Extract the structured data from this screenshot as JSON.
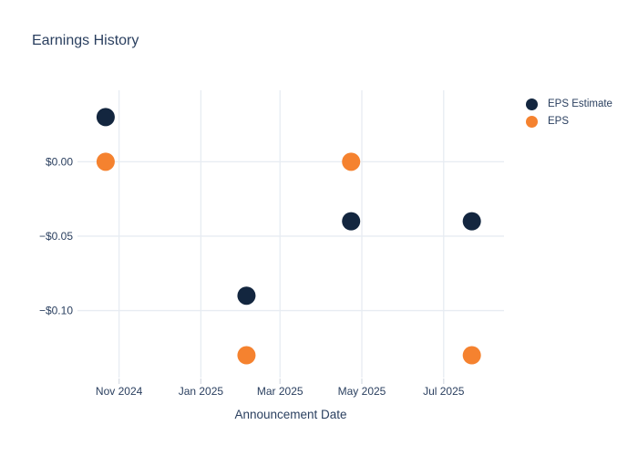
{
  "title": "Earnings History",
  "axis": {
    "x_title": "Announcement Date"
  },
  "legend": {
    "items": [
      {
        "label": "EPS Estimate",
        "color": "#13263f"
      },
      {
        "label": "EPS",
        "color": "#f5822f"
      }
    ]
  },
  "colors": {
    "estimate": "#13263f",
    "actual": "#f5822f",
    "text": "#2a3f5f",
    "grid": "#e7ecf2",
    "tick": "#d9dee6",
    "background": "#ffffff"
  },
  "chart_data": {
    "type": "scatter",
    "title": "Earnings History",
    "xlabel": "Announcement Date",
    "ylabel": "",
    "grid": true,
    "legend_position": "outside-top-right",
    "x_range": [
      "2024-10-01",
      "2025-08-15"
    ],
    "y_range": [
      -0.145,
      0.048
    ],
    "x_ticks": [
      {
        "x": "2024-11-01",
        "label": "Nov 2024"
      },
      {
        "x": "2025-01-01",
        "label": "Jan 2025"
      },
      {
        "x": "2025-03-01",
        "label": "Mar 2025"
      },
      {
        "x": "2025-05-01",
        "label": "May 2025"
      },
      {
        "x": "2025-07-01",
        "label": "Jul 2025"
      }
    ],
    "y_ticks": [
      {
        "y": 0,
        "label": "$0.00"
      },
      {
        "y": -0.05,
        "label": "−$0.05"
      },
      {
        "y": -0.1,
        "label": "−$0.10"
      }
    ],
    "marker_radius": 10,
    "series": [
      {
        "name": "EPS Estimate",
        "color": "#13263f",
        "marker": "circle",
        "points": [
          {
            "x": "2024-10-22",
            "y": 0.03
          },
          {
            "x": "2025-02-04",
            "y": -0.09
          },
          {
            "x": "2025-04-23",
            "y": -0.04
          },
          {
            "x": "2025-07-22",
            "y": -0.04
          }
        ]
      },
      {
        "name": "EPS",
        "color": "#f5822f",
        "marker": "circle",
        "points": [
          {
            "x": "2024-10-22",
            "y": 0.0
          },
          {
            "x": "2025-02-04",
            "y": -0.13
          },
          {
            "x": "2025-04-23",
            "y": 0.0
          },
          {
            "x": "2025-07-22",
            "y": -0.13
          }
        ]
      }
    ]
  }
}
